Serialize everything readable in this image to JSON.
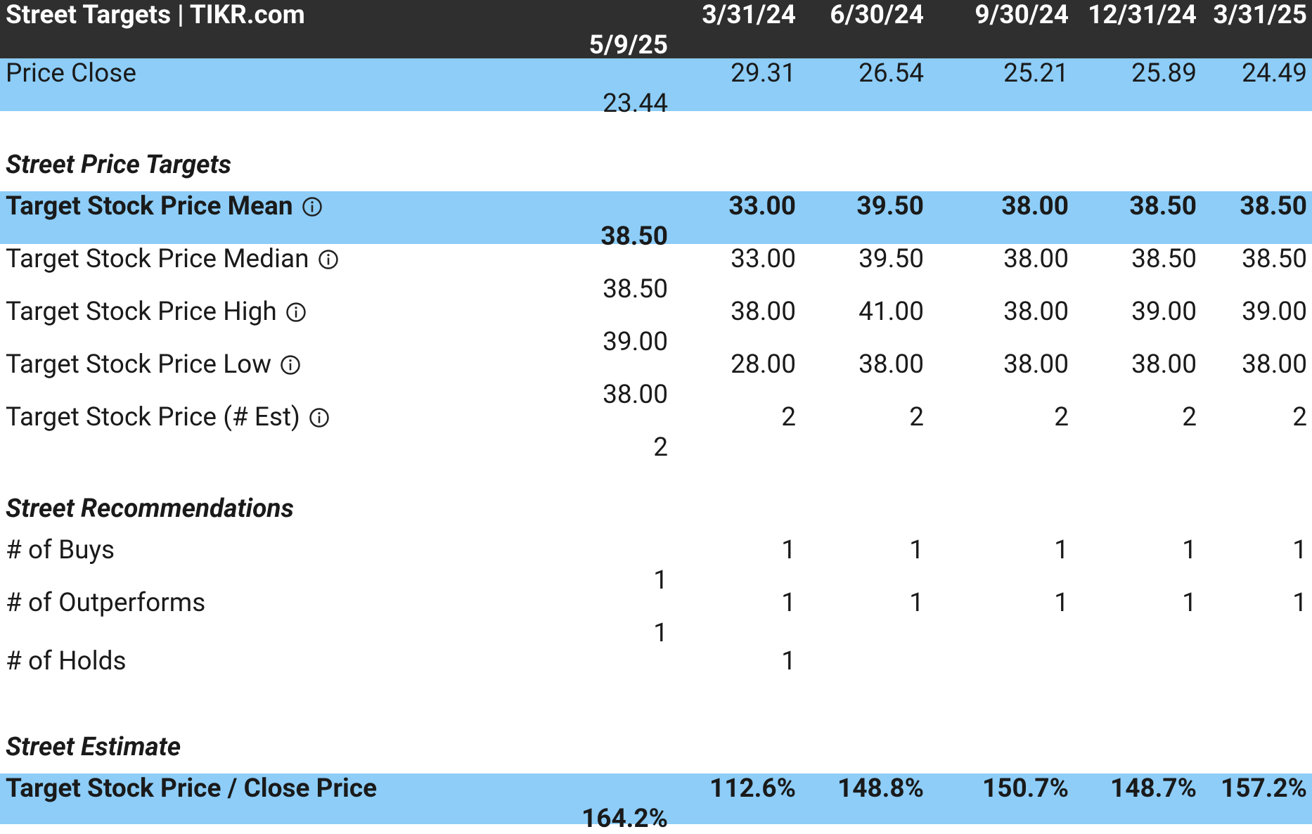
{
  "header": {
    "title": "Street Targets | TIKR.com",
    "columns": [
      "3/31/24",
      "6/30/24",
      "9/30/24",
      "12/31/24",
      "3/31/25",
      "5/9/25"
    ]
  },
  "rows": [
    {
      "label": "Price Close",
      "values": [
        "29.31",
        "26.54",
        "25.21",
        "25.89",
        "24.49",
        "23.44"
      ],
      "highlight": true
    },
    {
      "section": "Street Price Targets"
    },
    {
      "label": "Target Stock Price Mean",
      "values": [
        "33.00",
        "39.50",
        "38.00",
        "38.50",
        "38.50",
        "38.50"
      ],
      "highlight": true,
      "bold": true,
      "info": true
    },
    {
      "label": "Target Stock Price Median",
      "values": [
        "33.00",
        "39.50",
        "38.00",
        "38.50",
        "38.50",
        "38.50"
      ],
      "info": true
    },
    {
      "label": "Target Stock Price High",
      "values": [
        "38.00",
        "41.00",
        "38.00",
        "39.00",
        "39.00",
        "39.00"
      ],
      "info": true
    },
    {
      "label": "Target Stock Price Low",
      "values": [
        "28.00",
        "38.00",
        "38.00",
        "38.00",
        "38.00",
        "38.00"
      ],
      "info": true
    },
    {
      "label": "Target Stock Price (# Est)",
      "values": [
        "2",
        "2",
        "2",
        "2",
        "2",
        "2"
      ],
      "info": true
    },
    {
      "section": "Street Recommendations"
    },
    {
      "label": "# of Buys",
      "values": [
        "1",
        "1",
        "1",
        "1",
        "1",
        "1"
      ]
    },
    {
      "label": "# of Outperforms",
      "values": [
        "1",
        "1",
        "1",
        "1",
        "1",
        "1"
      ]
    },
    {
      "label": "# of Holds",
      "values": [
        "1",
        null,
        null,
        null,
        null,
        null
      ]
    },
    {
      "section": "Street Estimate"
    },
    {
      "label": "Target Stock Price / Close Price",
      "values": [
        "112.6%",
        "148.8%",
        "150.7%",
        "148.7%",
        "157.2%",
        "164.2%"
      ],
      "highlight": true,
      "bold": true
    }
  ]
}
